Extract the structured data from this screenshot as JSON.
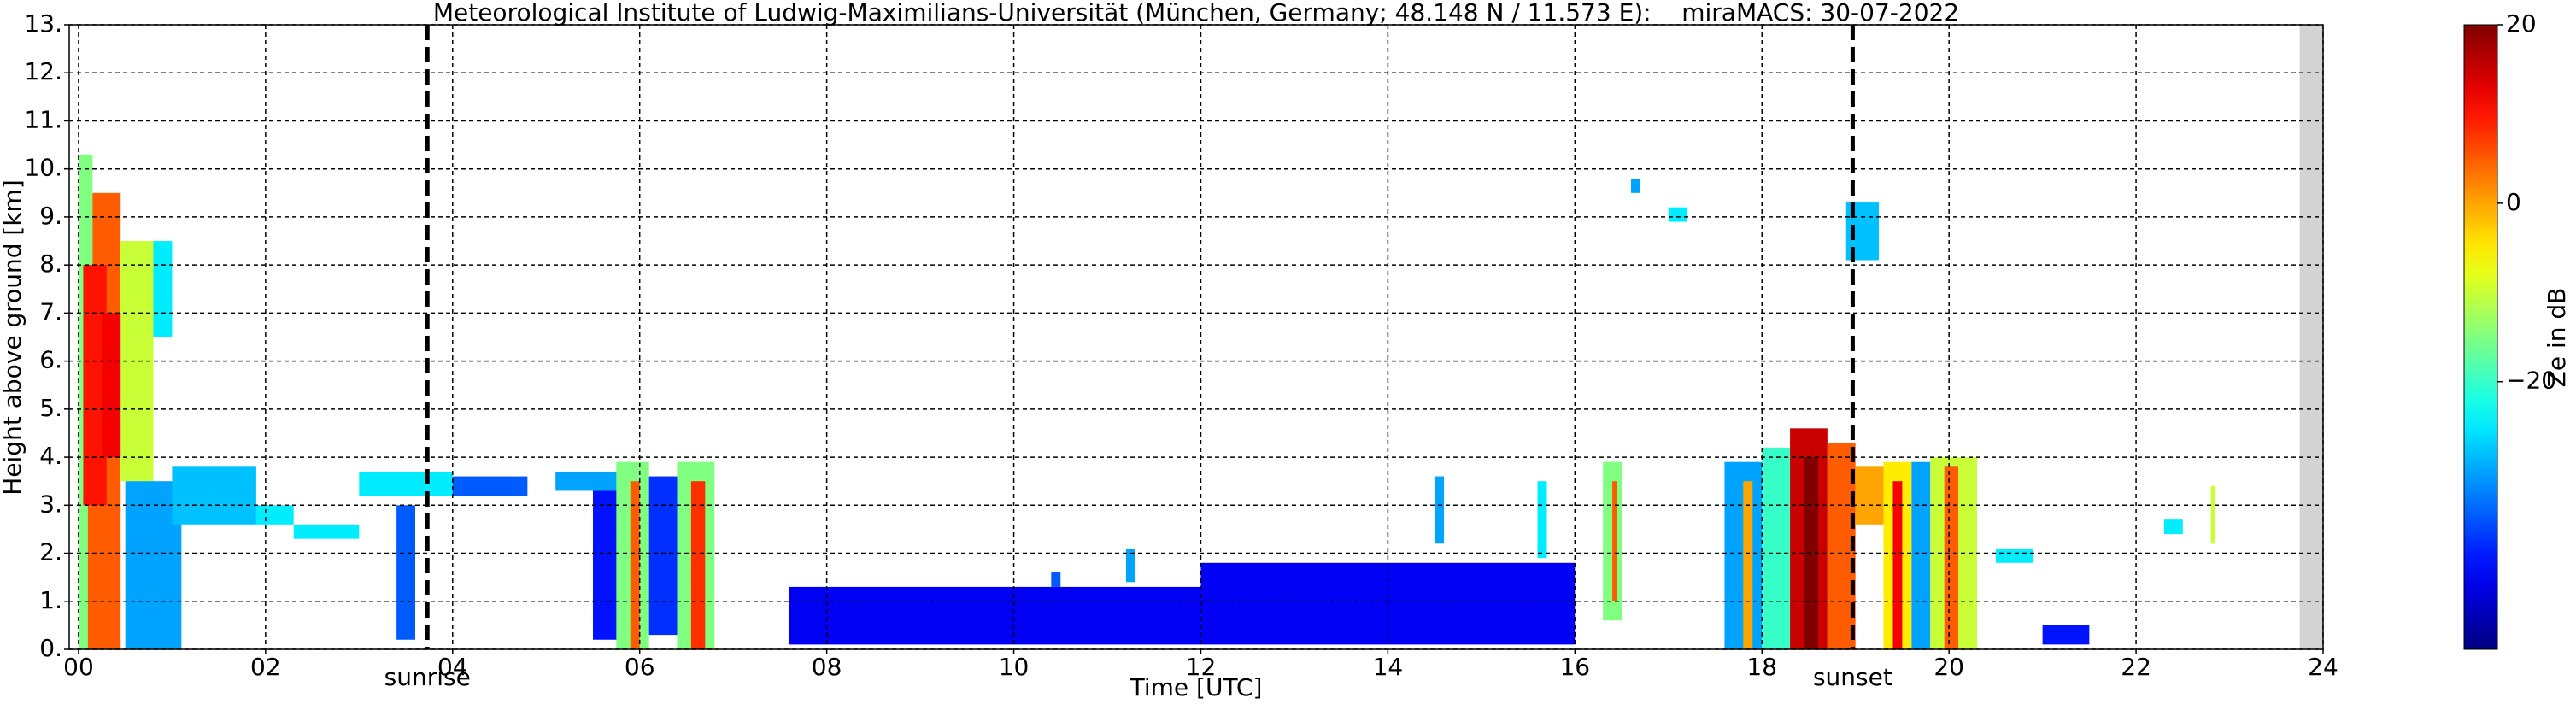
{
  "chart_data": {
    "type": "radar-curtain",
    "title": "Meteorological Institute of Ludwig-Maximilians-Universität (München, Germany; 48.148 N / 11.573 E):    miraMACS: 30-07-2022",
    "x_label": "Time [UTC]",
    "y_label": "Height above ground [km]",
    "colorbar_label": "Ze in dB",
    "xlim": [
      -0.1,
      24
    ],
    "xticks": [
      {
        "value": 0,
        "label": "00"
      },
      {
        "value": 2,
        "label": "02"
      },
      {
        "value": 4,
        "label": "04"
      },
      {
        "value": 6,
        "label": "06"
      },
      {
        "value": 8,
        "label": "08"
      },
      {
        "value": 10,
        "label": "10"
      },
      {
        "value": 12,
        "label": "12"
      },
      {
        "value": 14,
        "label": "14"
      },
      {
        "value": 16,
        "label": "16"
      },
      {
        "value": 18,
        "label": "18"
      },
      {
        "value": 20,
        "label": "20"
      },
      {
        "value": 22,
        "label": "22"
      },
      {
        "value": 24,
        "label": "24"
      }
    ],
    "ylim": [
      0,
      13
    ],
    "yticks": [
      {
        "value": 0,
        "label": "0."
      },
      {
        "value": 1,
        "label": "1."
      },
      {
        "value": 2,
        "label": "2."
      },
      {
        "value": 3,
        "label": "3."
      },
      {
        "value": 4,
        "label": "4."
      },
      {
        "value": 5,
        "label": "5."
      },
      {
        "value": 6,
        "label": "6."
      },
      {
        "value": 7,
        "label": "7."
      },
      {
        "value": 8,
        "label": "8."
      },
      {
        "value": 9,
        "label": "9."
      },
      {
        "value": 10,
        "label": "10."
      },
      {
        "value": 11,
        "label": "11."
      },
      {
        "value": 12,
        "label": "12."
      },
      {
        "value": 13,
        "label": "13."
      }
    ],
    "grid": true,
    "colormap": "jet",
    "clim": [
      -50,
      20
    ],
    "cticks": [
      {
        "value": 20,
        "label": "20"
      },
      {
        "value": 0,
        "label": "0"
      },
      {
        "value": -20,
        "label": "−20"
      }
    ],
    "annotations": [
      {
        "label": "sunrise",
        "x": 3.73
      },
      {
        "label": "sunset",
        "x": 18.97
      }
    ],
    "missing_data": {
      "t": [
        23.75,
        24
      ],
      "color": "#d3d3d3"
    },
    "echoes": [
      [
        0,
        0.15,
        0,
        10.3,
        -15
      ],
      [
        0.15,
        0.45,
        0,
        9.5,
        5
      ],
      [
        0.05,
        0.3,
        3,
        8,
        10
      ],
      [
        0.25,
        0.5,
        4,
        7,
        12
      ],
      [
        0.45,
        0.8,
        3.5,
        8.5,
        -10
      ],
      [
        0.8,
        1.0,
        6.5,
        8.5,
        -25
      ],
      [
        0.5,
        1.1,
        0,
        3.5,
        -30
      ],
      [
        0.1,
        0.4,
        0,
        3,
        5
      ],
      [
        1.0,
        1.9,
        2.6,
        3.8,
        -28
      ],
      [
        1.9,
        2.3,
        2.6,
        3.0,
        -25
      ],
      [
        2.3,
        3.0,
        2.3,
        2.6,
        -25
      ],
      [
        3.0,
        4.0,
        3.2,
        3.7,
        -25
      ],
      [
        3.4,
        3.6,
        0.2,
        3.0,
        -35
      ],
      [
        4.0,
        4.8,
        3.2,
        3.6,
        -35
      ],
      [
        5.1,
        5.9,
        3.3,
        3.7,
        -30
      ],
      [
        5.5,
        5.8,
        0.2,
        3.3,
        -40
      ],
      [
        5.75,
        6.1,
        0,
        3.9,
        -15
      ],
      [
        5.9,
        6.0,
        0,
        3.5,
        5
      ],
      [
        6.1,
        6.4,
        0.3,
        3.6,
        -38
      ],
      [
        6.4,
        6.8,
        0,
        3.9,
        -15
      ],
      [
        6.55,
        6.7,
        0,
        3.5,
        8
      ],
      [
        7.6,
        12,
        0.1,
        1.3,
        -42
      ],
      [
        12,
        16,
        0.1,
        1.8,
        -42
      ],
      [
        10.4,
        10.5,
        1.3,
        1.6,
        -35
      ],
      [
        11.2,
        11.3,
        1.4,
        2.1,
        -30
      ],
      [
        14.5,
        14.6,
        2.2,
        3.6,
        -30
      ],
      [
        15.6,
        15.7,
        1.9,
        3.5,
        -25
      ],
      [
        16.3,
        16.5,
        0.6,
        3.9,
        -15
      ],
      [
        16.4,
        16.45,
        1,
        3.5,
        5
      ],
      [
        17.6,
        18.0,
        0,
        3.9,
        -30
      ],
      [
        17.8,
        17.9,
        0,
        3.5,
        0
      ],
      [
        18.0,
        18.3,
        0,
        4.2,
        -20
      ],
      [
        18.3,
        18.7,
        0,
        4.6,
        15
      ],
      [
        18.45,
        18.6,
        0,
        4.0,
        20
      ],
      [
        18.7,
        19.0,
        0,
        4.3,
        5
      ],
      [
        19.0,
        19.3,
        2.6,
        3.8,
        0
      ],
      [
        19.3,
        19.6,
        0,
        3.9,
        -5
      ],
      [
        19.4,
        19.5,
        0,
        3.5,
        12
      ],
      [
        19.6,
        19.8,
        0,
        3.9,
        -30
      ],
      [
        19.8,
        20.3,
        0,
        4.0,
        -10
      ],
      [
        19.95,
        20.1,
        0,
        3.8,
        5
      ],
      [
        20.5,
        20.9,
        1.8,
        2.1,
        -25
      ],
      [
        21,
        21.5,
        0.1,
        0.5,
        -40
      ],
      [
        22.3,
        22.5,
        2.4,
        2.7,
        -25
      ],
      [
        22.8,
        22.85,
        2.2,
        3.4,
        -10
      ],
      [
        17.0,
        17.2,
        8.9,
        9.2,
        -25
      ],
      [
        18.9,
        19.25,
        8.1,
        9.3,
        -28
      ],
      [
        16.6,
        16.7,
        9.5,
        9.8,
        -30
      ]
    ]
  }
}
